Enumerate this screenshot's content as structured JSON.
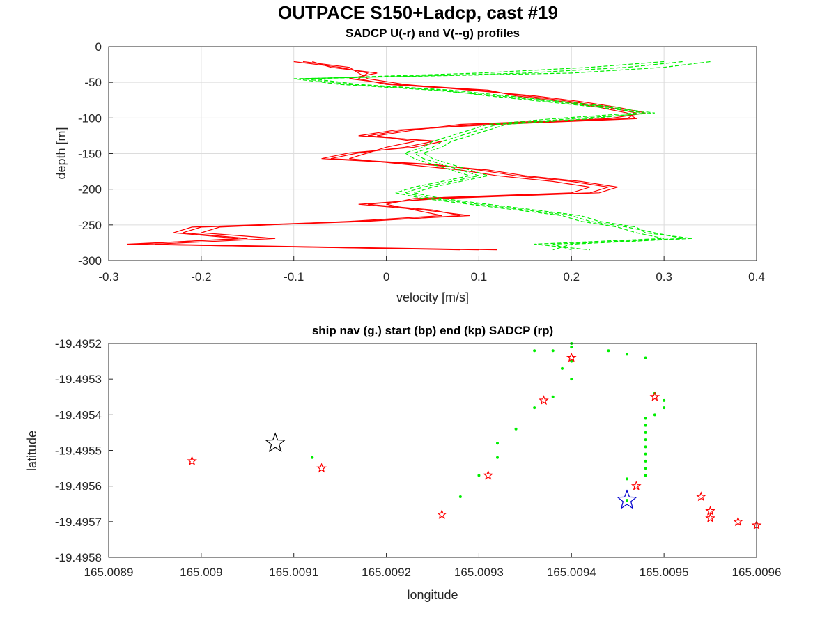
{
  "figure": {
    "title": "OUTPACE S150+Ladcp, cast #19"
  },
  "chart_data": [
    {
      "type": "line",
      "title": "SADCP U(-r) and V(--g) profiles",
      "xlabel": "velocity [m/s]",
      "ylabel": "depth [m]",
      "xlim": [
        -0.3,
        0.4
      ],
      "ylim": [
        -300,
        0
      ],
      "xticks": [
        "-0.3",
        "-0.2",
        "-0.1",
        "0",
        "0.1",
        "0.2",
        "0.3",
        "0.4"
      ],
      "yticks": [
        "0",
        "-50",
        "-100",
        "-150",
        "-200",
        "-250",
        "-300"
      ],
      "grid": true,
      "colors": {
        "U": "#ff0000",
        "V": "#00ee00"
      },
      "depths": [
        -21,
        -29,
        -37,
        -45,
        -53,
        -61,
        -69,
        -77,
        -85,
        -93,
        -101,
        -109,
        -117,
        -125,
        -133,
        -141,
        -149,
        -157,
        -165,
        -173,
        -181,
        -189,
        -197,
        -205,
        -213,
        -221,
        -229,
        -237,
        -245,
        -253,
        -261,
        -269,
        -277,
        -285
      ],
      "series": [
        {
          "values": [
            -0.1,
            -0.05,
            -0.02,
            -0.03,
            0.0,
            0.1,
            0.15,
            0.2,
            0.24,
            0.27,
            0.26,
            0.1,
            0.02,
            -0.02,
            0.05,
            0.02,
            -0.03,
            -0.06,
            0.05,
            0.1,
            0.14,
            0.2,
            0.24,
            0.22,
            0.05,
            -0.02,
            0.05,
            0.08,
            -0.02,
            -0.2,
            -0.22,
            -0.15,
            -0.28,
            0.1
          ],
          "style": "solid"
        },
        {
          "values": [
            -0.09,
            -0.04,
            -0.03,
            -0.02,
            0.02,
            0.09,
            0.16,
            0.21,
            0.25,
            0.28,
            0.24,
            0.08,
            0.03,
            -0.01,
            0.03,
            0.0,
            -0.02,
            -0.04,
            0.02,
            0.08,
            0.12,
            0.18,
            0.22,
            0.2,
            0.03,
            0.0,
            0.03,
            0.06,
            -0.04,
            -0.18,
            -0.2,
            -0.12,
            -0.25,
            0.12
          ],
          "style": "solid"
        },
        {
          "values": [
            -0.08,
            -0.06,
            -0.01,
            -0.04,
            0.01,
            0.11,
            0.14,
            0.19,
            0.23,
            0.26,
            0.27,
            0.12,
            0.01,
            -0.03,
            0.06,
            0.03,
            -0.04,
            -0.07,
            0.04,
            0.11,
            0.15,
            0.21,
            0.25,
            0.23,
            0.06,
            -0.03,
            0.04,
            0.09,
            -0.03,
            -0.21,
            -0.23,
            -0.16,
            -0.27,
            0.08
          ],
          "style": "solid"
        },
        {
          "values": [
            0.35,
            0.3,
            0.2,
            -0.1,
            -0.05,
            0.05,
            0.12,
            0.18,
            0.24,
            0.29,
            0.2,
            0.12,
            0.1,
            0.08,
            0.06,
            0.05,
            0.03,
            0.04,
            0.06,
            0.08,
            0.1,
            0.07,
            0.04,
            0.02,
            0.05,
            0.1,
            0.15,
            0.2,
            0.22,
            0.26,
            0.29,
            0.32,
            0.18,
            0.2
          ],
          "style": "dashed"
        },
        {
          "values": [
            0.32,
            0.26,
            0.15,
            -0.08,
            -0.03,
            0.07,
            0.13,
            0.19,
            0.25,
            0.27,
            0.18,
            0.11,
            0.09,
            0.07,
            0.05,
            0.04,
            0.02,
            0.03,
            0.05,
            0.07,
            0.09,
            0.06,
            0.03,
            0.01,
            0.04,
            0.09,
            0.14,
            0.19,
            0.21,
            0.25,
            0.27,
            0.3,
            0.16,
            0.22
          ],
          "style": "dashed"
        },
        {
          "values": [
            0.3,
            0.22,
            0.1,
            -0.09,
            -0.04,
            0.06,
            0.11,
            0.17,
            0.23,
            0.28,
            0.22,
            0.13,
            0.11,
            0.09,
            0.07,
            0.06,
            0.04,
            0.05,
            0.07,
            0.09,
            0.11,
            0.08,
            0.05,
            0.03,
            0.06,
            0.11,
            0.16,
            0.21,
            0.23,
            0.27,
            0.28,
            0.33,
            0.2,
            0.18
          ],
          "style": "dashed"
        }
      ]
    },
    {
      "type": "scatter",
      "title": "ship nav (g.) start (bp) end (kp) SADCP (rp)",
      "xlabel": "longitude",
      "ylabel": "latitude",
      "xlim": [
        165.0089,
        165.0096
      ],
      "ylim": [
        -19.4958,
        -19.4952
      ],
      "xticks": [
        "165.0089",
        "165.009",
        "165.0091",
        "165.0092",
        "165.0093",
        "165.0094",
        "165.0095",
        "165.0096"
      ],
      "yticks": [
        "-19.4952",
        "-19.4953",
        "-19.4954",
        "-19.4955",
        "-19.4956",
        "-19.4957",
        "-19.4958"
      ],
      "grid": false,
      "ship_nav": {
        "color": "#00ee00",
        "lon": [
          165.00912,
          165.00928,
          165.0093,
          165.00932,
          165.00932,
          165.00934,
          165.00936,
          165.00938,
          165.00939,
          165.0094,
          165.0094,
          165.0094,
          165.0094,
          165.00938,
          165.00936,
          165.00944,
          165.00946,
          165.00948,
          165.00949,
          165.0095,
          165.0095,
          165.00949,
          165.00948,
          165.00948,
          165.00948,
          165.00948,
          165.00948,
          165.00948,
          165.00948,
          165.00948,
          165.00948,
          165.00946,
          165.00946
        ],
        "lat": [
          -19.49552,
          -19.49563,
          -19.49557,
          -19.49552,
          -19.49548,
          -19.49544,
          -19.49538,
          -19.49535,
          -19.49527,
          -19.4953,
          -19.49525,
          -19.49521,
          -19.4952,
          -19.49522,
          -19.49522,
          -19.49522,
          -19.49523,
          -19.49524,
          -19.49534,
          -19.49536,
          -19.49538,
          -19.4954,
          -19.49541,
          -19.49543,
          -19.49545,
          -19.49547,
          -19.49549,
          -19.49551,
          -19.49553,
          -19.49555,
          -19.49557,
          -19.49558,
          -19.49564
        ]
      },
      "sadcp": {
        "color": "#ff0000",
        "lon": [
          165.00899,
          165.00913,
          165.00926,
          165.00931,
          165.00937,
          165.0094,
          165.00949,
          165.00947,
          165.00954,
          165.00955,
          165.00955,
          165.00958,
          165.0096
        ],
        "lat": [
          -19.49553,
          -19.49555,
          -19.49568,
          -19.49557,
          -19.49536,
          -19.49524,
          -19.49535,
          -19.4956,
          -19.49563,
          -19.49567,
          -19.49569,
          -19.4957,
          -19.49571
        ]
      },
      "start": {
        "color": "#0000cc",
        "lon": 165.00946,
        "lat": -19.49564
      },
      "end": {
        "color": "#000000",
        "lon": 165.00908,
        "lat": -19.49548
      }
    }
  ]
}
